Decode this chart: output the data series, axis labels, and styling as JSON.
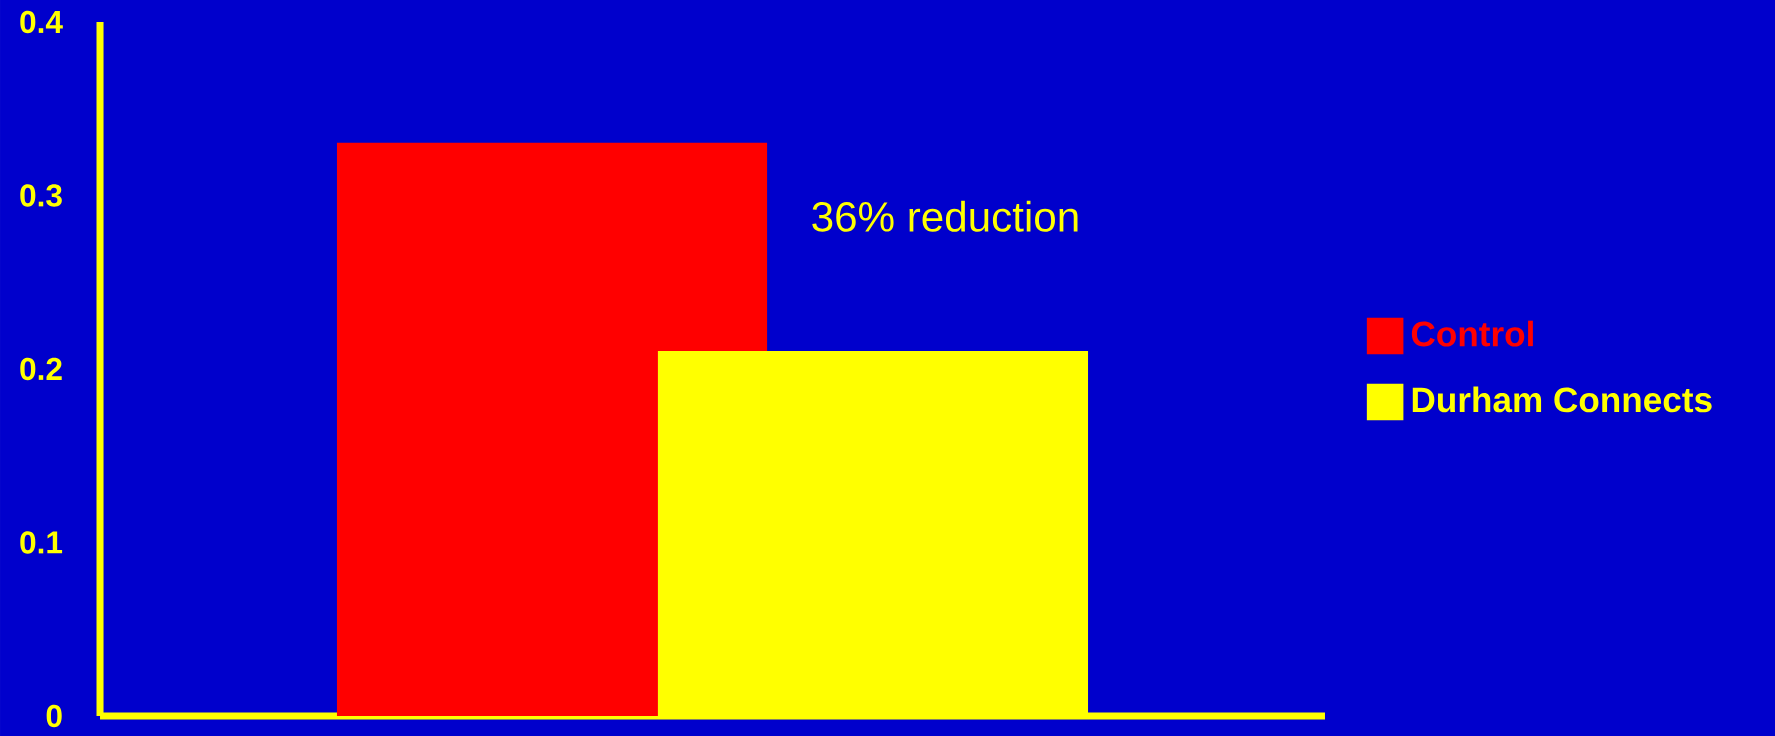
{
  "chart_data": {
    "type": "bar",
    "categories": [
      null
    ],
    "series": [
      {
        "name": "Control",
        "color": "#ff0000",
        "values": [
          0.33
        ]
      },
      {
        "name": "Durham Connects",
        "color": "#ffff00",
        "values": [
          0.21
        ]
      }
    ],
    "ylim": [
      0,
      0.4
    ],
    "yticks": [
      0,
      0.1,
      0.2,
      0.3,
      0.4
    ],
    "grid": false,
    "legend": "right",
    "annotations": [
      "36% reduction"
    ]
  }
}
